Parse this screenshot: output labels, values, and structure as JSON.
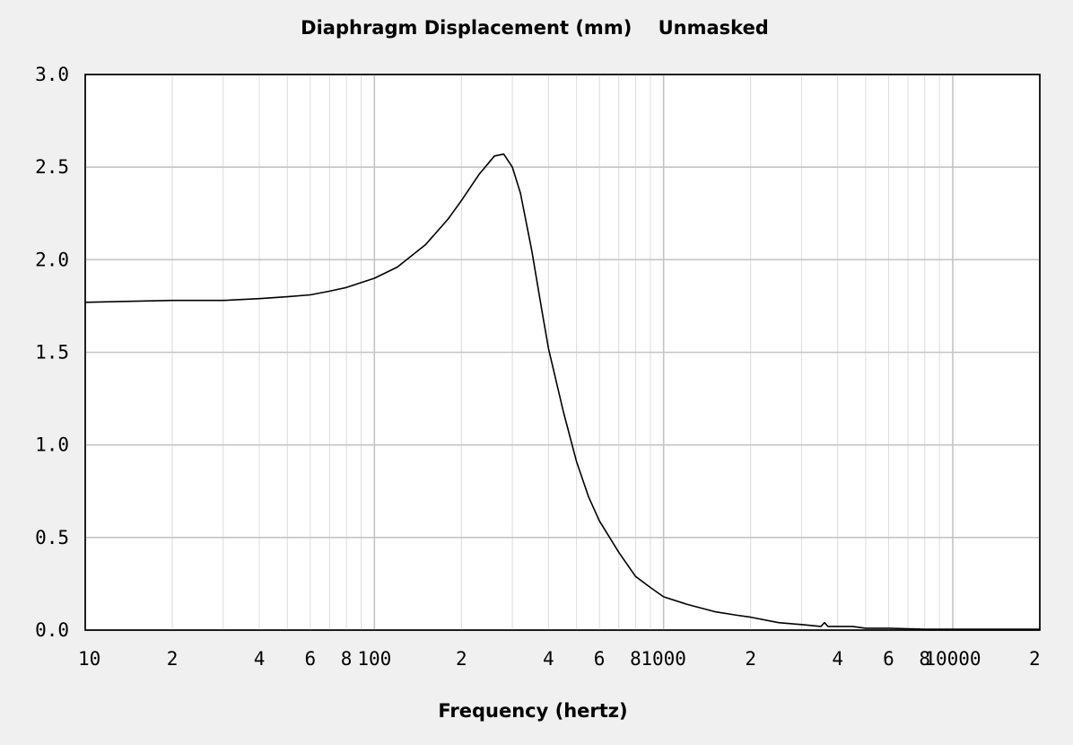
{
  "chart_data": {
    "type": "line",
    "title": "Diaphragm Displacement (mm)",
    "subtitle": "Unmasked",
    "xlabel": "Frequency (hertz)",
    "ylabel": "",
    "x_scale": "log",
    "xlim": [
      10,
      20000
    ],
    "ylim": [
      0,
      3
    ],
    "grid": true,
    "x_tick_labels": [
      {
        "v": 10,
        "t": "10"
      },
      {
        "v": 20,
        "t": "2"
      },
      {
        "v": 40,
        "t": "4"
      },
      {
        "v": 60,
        "t": "6"
      },
      {
        "v": 80,
        "t": "8"
      },
      {
        "v": 100,
        "t": "100"
      },
      {
        "v": 200,
        "t": "2"
      },
      {
        "v": 400,
        "t": "4"
      },
      {
        "v": 600,
        "t": "6"
      },
      {
        "v": 800,
        "t": "8"
      },
      {
        "v": 1000,
        "t": "1000"
      },
      {
        "v": 2000,
        "t": "2"
      },
      {
        "v": 4000,
        "t": "4"
      },
      {
        "v": 6000,
        "t": "6"
      },
      {
        "v": 8000,
        "t": "8"
      },
      {
        "v": 10000,
        "t": "10000"
      },
      {
        "v": 20000,
        "t": "2"
      }
    ],
    "y_tick_labels": [
      {
        "v": 0,
        "t": "0.0"
      },
      {
        "v": 0.5,
        "t": "0.5"
      },
      {
        "v": 1,
        "t": "1.0"
      },
      {
        "v": 1.5,
        "t": "1.5"
      },
      {
        "v": 2,
        "t": "2.0"
      },
      {
        "v": 2.5,
        "t": "2.5"
      },
      {
        "v": 3,
        "t": "3.0"
      }
    ],
    "series": [
      {
        "color": "#000000",
        "x": [
          10,
          20,
          30,
          40,
          50,
          60,
          70,
          80,
          100,
          120,
          150,
          180,
          200,
          230,
          260,
          280,
          300,
          320,
          350,
          380,
          400,
          450,
          500,
          550,
          600,
          700,
          800,
          900,
          1000,
          1200,
          1500,
          1800,
          2000,
          2500,
          3000,
          3500,
          3600,
          3700,
          4000,
          4500,
          5000,
          6000,
          8000,
          10000,
          20000
        ],
        "y": [
          1.77,
          1.78,
          1.78,
          1.79,
          1.8,
          1.81,
          1.83,
          1.85,
          1.9,
          1.96,
          2.08,
          2.22,
          2.32,
          2.46,
          2.56,
          2.57,
          2.5,
          2.36,
          2.05,
          1.72,
          1.52,
          1.18,
          0.91,
          0.72,
          0.59,
          0.42,
          0.29,
          0.23,
          0.18,
          0.14,
          0.1,
          0.08,
          0.07,
          0.04,
          0.03,
          0.02,
          0.04,
          0.02,
          0.02,
          0.02,
          0.01,
          0.01,
          0.005,
          0.005,
          0.005
        ]
      }
    ]
  }
}
